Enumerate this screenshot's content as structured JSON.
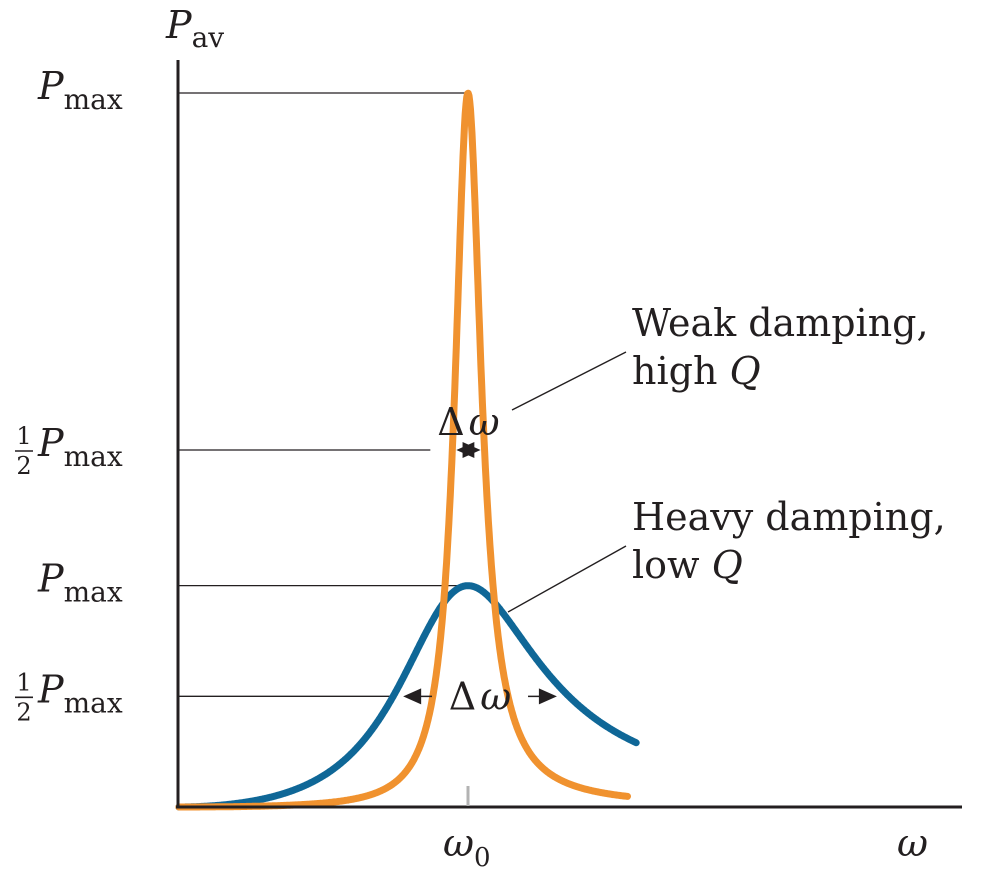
{
  "chart_data": {
    "type": "line",
    "title": "",
    "xlabel": "ω",
    "ylabel": "P",
    "ylabel_sub": "av",
    "x_ticks": [
      {
        "label": "ω",
        "sub": "0",
        "x": 1.0
      }
    ],
    "y_ticks": [
      {
        "prefix": "",
        "label": "P",
        "sub": "max",
        "y": 1.0,
        "series": "weak"
      },
      {
        "prefix": "1/2",
        "label": "P",
        "sub": "max",
        "y": 0.5,
        "series": "weak"
      },
      {
        "prefix": "",
        "label": "P",
        "sub": "max",
        "y": 0.31,
        "series": "heavy"
      },
      {
        "prefix": "1/2",
        "label": "P",
        "sub": "max",
        "y": 0.155,
        "series": "heavy"
      }
    ],
    "xlim": [
      0,
      1.6
    ],
    "ylim": [
      0,
      1.0
    ],
    "series": [
      {
        "key": "weak",
        "color": "#f0922f",
        "omega0": 1.0,
        "q": 9,
        "peak": 1.0
      },
      {
        "key": "heavy",
        "color": "#0f6797",
        "omega0": 1.0,
        "q": 1.65,
        "peak": 0.31
      }
    ],
    "annotations": [
      {
        "key": "weak",
        "lines": [
          "Weak damping,",
          "high Q"
        ]
      },
      {
        "key": "heavy",
        "lines": [
          "Heavy damping,",
          "low Q"
        ]
      }
    ],
    "width_labels": [
      {
        "key": "weak",
        "prefix": "Δ",
        "label": "ω"
      },
      {
        "key": "heavy",
        "prefix": "Δ",
        "label": "ω"
      }
    ]
  }
}
